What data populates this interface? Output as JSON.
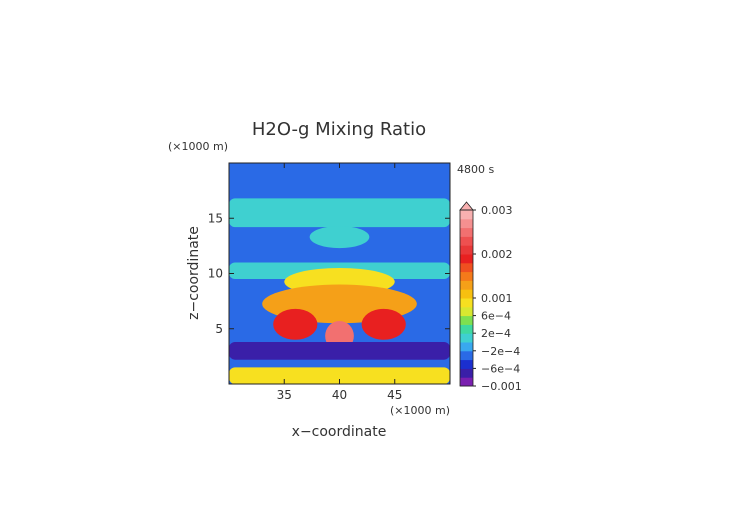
{
  "chart_data": {
    "type": "heatmap",
    "title": "H2O-g Mixing Ratio",
    "time_label": "4800 s",
    "xlabel": "x−coordinate",
    "ylabel": "z−coordinate",
    "x_unit_label": "(×1000 m)",
    "y_unit_label": "(×1000 m)",
    "xlim": [
      30,
      50
    ],
    "ylim": [
      0,
      20
    ],
    "x_ticks": [
      {
        "value": 35,
        "label": "35"
      },
      {
        "value": 40,
        "label": "40"
      },
      {
        "value": 45,
        "label": "45"
      }
    ],
    "y_ticks": [
      {
        "value": 5,
        "label": "5"
      },
      {
        "value": 10,
        "label": "10"
      },
      {
        "value": 15,
        "label": "15"
      }
    ],
    "colorbar": {
      "levels": [
        -0.001,
        -0.0008,
        -0.0006,
        -0.0004,
        -0.0002,
        0,
        0.0002,
        0.0004,
        0.0006,
        0.0008,
        0.001,
        0.0012,
        0.0014,
        0.0016,
        0.0018,
        0.002,
        0.0022,
        0.0024,
        0.0026,
        0.0028,
        0.003
      ],
      "colors": [
        "#7a1fb0",
        "#3a1fa8",
        "#1b2fcf",
        "#2a6ae6",
        "#39a8ef",
        "#3fd0d0",
        "#3fd9a0",
        "#7ee050",
        "#d8e830",
        "#f7e020",
        "#f7c010",
        "#f5a018",
        "#f57a1a",
        "#f05020",
        "#e82020",
        "#e83838",
        "#ee5050",
        "#f27070",
        "#f59090",
        "#f8b0b0"
      ],
      "tick_labels": [
        {
          "value": -0.001,
          "label": "−0.001"
        },
        {
          "value": -0.0006,
          "label": "−6e−4"
        },
        {
          "value": -0.0002,
          "label": "−2e−4"
        },
        {
          "value": 0.0002,
          "label": "2e−4"
        },
        {
          "value": 0.0006,
          "label": "6e−4"
        },
        {
          "value": 0.001,
          "label": "0.001"
        },
        {
          "value": 0.002,
          "label": "0.002"
        },
        {
          "value": 0.003,
          "label": "0.003"
        }
      ]
    },
    "regions": [
      {
        "desc": "background",
        "value": -0.0003
      },
      {
        "desc": "upper cloud band",
        "x": [
          30,
          50
        ],
        "z": [
          14.2,
          16.8
        ],
        "value": 0.0001
      },
      {
        "desc": "anvil lobe",
        "x": [
          37.3,
          42.7
        ],
        "z": [
          12.3,
          14.3
        ],
        "value": 0.0001
      },
      {
        "desc": "mid level band",
        "x": [
          30,
          50
        ],
        "z": [
          9.5,
          11.0
        ],
        "value": 0.0001
      },
      {
        "desc": "core yellow",
        "x": [
          35,
          45
        ],
        "z": [
          8.0,
          10.5
        ],
        "value": 0.0009
      },
      {
        "desc": "core orange",
        "x": [
          33,
          47
        ],
        "z": [
          5.5,
          9.0
        ],
        "value": 0.0012
      },
      {
        "desc": "core red left",
        "x": [
          34,
          38
        ],
        "z": [
          4.0,
          6.8
        ],
        "value": 0.0018
      },
      {
        "desc": "core red right",
        "x": [
          42,
          46
        ],
        "z": [
          4.0,
          6.8
        ],
        "value": 0.0018
      },
      {
        "desc": "core red center",
        "x": [
          38.7,
          41.3
        ],
        "z": [
          3.0,
          5.7
        ],
        "value": 0.0025
      },
      {
        "desc": "lower dry band",
        "x": [
          30,
          50
        ],
        "z": [
          2.2,
          3.8
        ],
        "value": -0.0007
      },
      {
        "desc": "surface moist layer",
        "x": [
          30,
          50
        ],
        "z": [
          0,
          1.5
        ],
        "value": 0.0008
      }
    ]
  }
}
